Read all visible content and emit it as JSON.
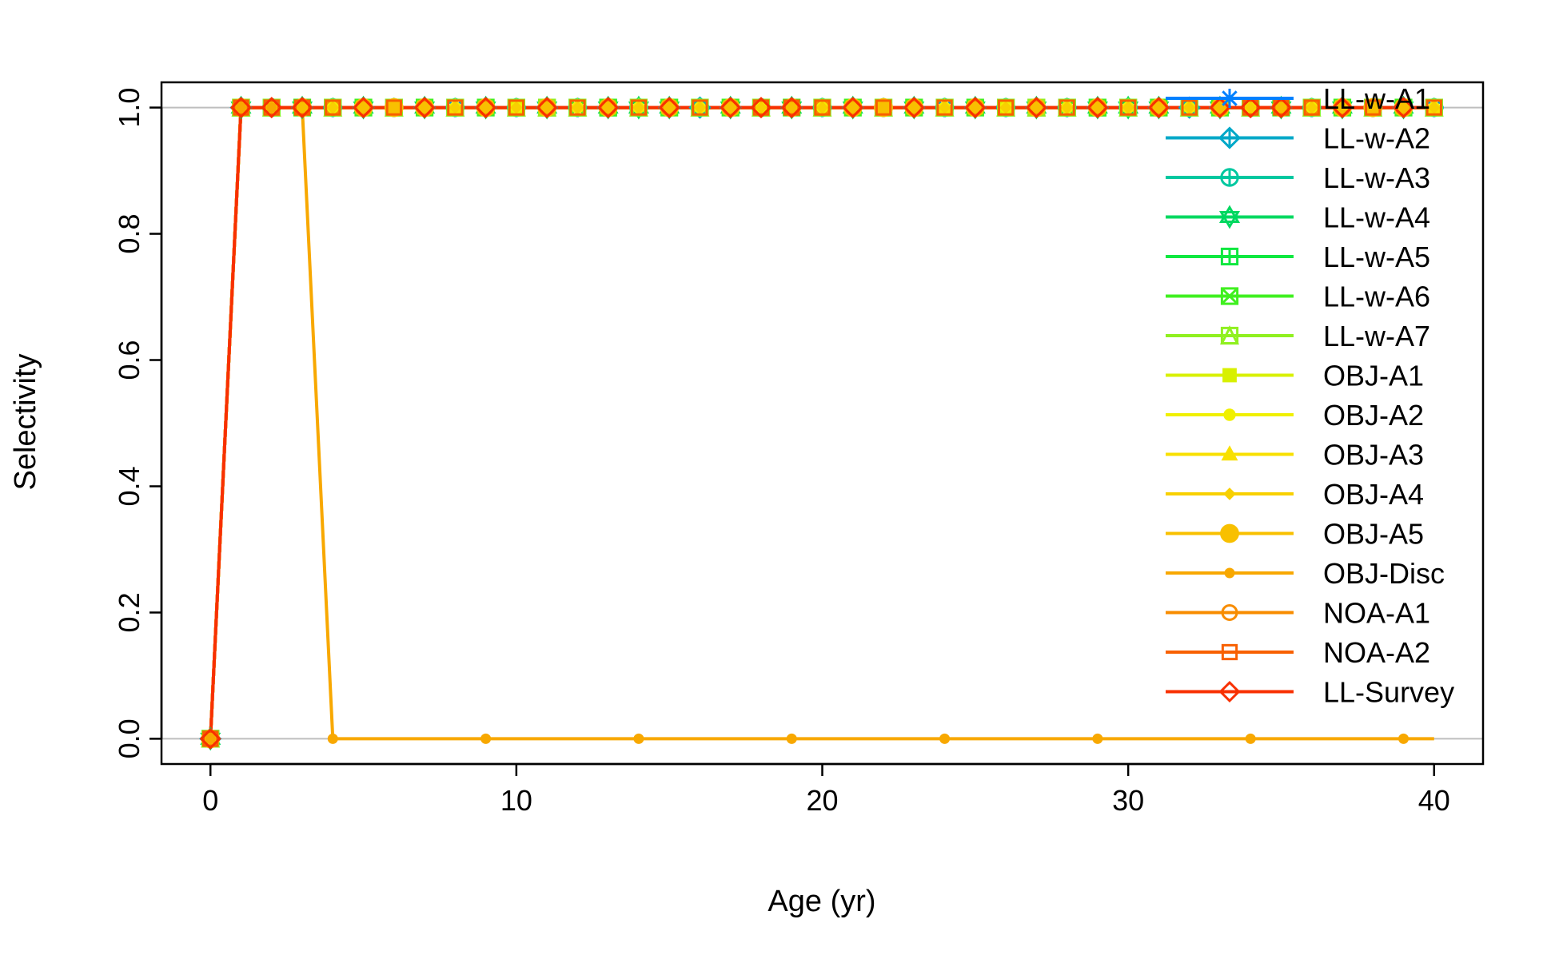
{
  "chart_data": {
    "type": "line",
    "title": "",
    "xlabel": "Age (yr)",
    "ylabel": "Selectivity",
    "xlim": [
      -1.6,
      41.6
    ],
    "ylim": [
      -0.04,
      1.04
    ],
    "x_ticks": [
      "0",
      "10",
      "20",
      "30",
      "40"
    ],
    "x_tick_values": [
      0,
      10,
      20,
      30,
      40
    ],
    "y_ticks": [
      "0.0",
      "0.2",
      "0.4",
      "0.6",
      "0.8",
      "1.0"
    ],
    "y_tick_values": [
      0.0,
      0.2,
      0.4,
      0.6,
      0.8,
      1.0
    ],
    "reference_lines_y": [
      0,
      1
    ],
    "grid": false,
    "legend_position": "top-right",
    "x": [
      0,
      1,
      2,
      3,
      4,
      5,
      6,
      7,
      8,
      9,
      10,
      11,
      12,
      13,
      14,
      15,
      16,
      17,
      18,
      19,
      20,
      21,
      22,
      23,
      24,
      25,
      26,
      27,
      28,
      29,
      30,
      31,
      32,
      33,
      34,
      35,
      36,
      37,
      38,
      39,
      40
    ],
    "series": [
      {
        "name": "LL-w-A1",
        "color": "#0080FF",
        "marker": "asterisk",
        "values": [
          0,
          1,
          1,
          1,
          1,
          1,
          1,
          1,
          1,
          1,
          1,
          1,
          1,
          1,
          1,
          1,
          1,
          1,
          1,
          1,
          1,
          1,
          1,
          1,
          1,
          1,
          1,
          1,
          1,
          1,
          1,
          1,
          1,
          1,
          1,
          1,
          1,
          1,
          1,
          1,
          1
        ]
      },
      {
        "name": "LL-w-A2",
        "color": "#00A8C8",
        "marker": "diamond-plus",
        "values": [
          0,
          1,
          1,
          1,
          1,
          1,
          1,
          1,
          1,
          1,
          1,
          1,
          1,
          1,
          1,
          1,
          1,
          1,
          1,
          1,
          1,
          1,
          1,
          1,
          1,
          1,
          1,
          1,
          1,
          1,
          1,
          1,
          1,
          1,
          1,
          1,
          1,
          1,
          1,
          1,
          1
        ]
      },
      {
        "name": "LL-w-A3",
        "color": "#00C8A0",
        "marker": "circle-plus",
        "values": [
          0,
          1,
          1,
          1,
          1,
          1,
          1,
          1,
          1,
          1,
          1,
          1,
          1,
          1,
          1,
          1,
          1,
          1,
          1,
          1,
          1,
          1,
          1,
          1,
          1,
          1,
          1,
          1,
          1,
          1,
          1,
          1,
          1,
          1,
          1,
          1,
          1,
          1,
          1,
          1,
          1
        ]
      },
      {
        "name": "LL-w-A4",
        "color": "#00D860",
        "marker": "star-of-david",
        "values": [
          0,
          1,
          1,
          1,
          1,
          1,
          1,
          1,
          1,
          1,
          1,
          1,
          1,
          1,
          1,
          1,
          1,
          1,
          1,
          1,
          1,
          1,
          1,
          1,
          1,
          1,
          1,
          1,
          1,
          1,
          1,
          1,
          1,
          1,
          1,
          1,
          1,
          1,
          1,
          1,
          1
        ]
      },
      {
        "name": "LL-w-A5",
        "color": "#10E840",
        "marker": "square-plus",
        "values": [
          0,
          1,
          1,
          1,
          1,
          1,
          1,
          1,
          1,
          1,
          1,
          1,
          1,
          1,
          1,
          1,
          1,
          1,
          1,
          1,
          1,
          1,
          1,
          1,
          1,
          1,
          1,
          1,
          1,
          1,
          1,
          1,
          1,
          1,
          1,
          1,
          1,
          1,
          1,
          1,
          1
        ]
      },
      {
        "name": "LL-w-A6",
        "color": "#40F020",
        "marker": "square-cross",
        "values": [
          0,
          1,
          1,
          1,
          1,
          1,
          1,
          1,
          1,
          1,
          1,
          1,
          1,
          1,
          1,
          1,
          1,
          1,
          1,
          1,
          1,
          1,
          1,
          1,
          1,
          1,
          1,
          1,
          1,
          1,
          1,
          1,
          1,
          1,
          1,
          1,
          1,
          1,
          1,
          1,
          1
        ]
      },
      {
        "name": "LL-w-A7",
        "color": "#90F020",
        "marker": "square-triangle",
        "values": [
          0,
          1,
          1,
          1,
          1,
          1,
          1,
          1,
          1,
          1,
          1,
          1,
          1,
          1,
          1,
          1,
          1,
          1,
          1,
          1,
          1,
          1,
          1,
          1,
          1,
          1,
          1,
          1,
          1,
          1,
          1,
          1,
          1,
          1,
          1,
          1,
          1,
          1,
          1,
          1,
          1
        ]
      },
      {
        "name": "OBJ-A1",
        "color": "#D8F000",
        "marker": "filled-square",
        "values": [
          0,
          1,
          1,
          1,
          1,
          1,
          1,
          1,
          1,
          1,
          1,
          1,
          1,
          1,
          1,
          1,
          1,
          1,
          1,
          1,
          1,
          1,
          1,
          1,
          1,
          1,
          1,
          1,
          1,
          1,
          1,
          1,
          1,
          1,
          1,
          1,
          1,
          1,
          1,
          1,
          1
        ]
      },
      {
        "name": "OBJ-A2",
        "color": "#F0F000",
        "marker": "filled-circle",
        "values": [
          0,
          1,
          1,
          1,
          1,
          1,
          1,
          1,
          1,
          1,
          1,
          1,
          1,
          1,
          1,
          1,
          1,
          1,
          1,
          1,
          1,
          1,
          1,
          1,
          1,
          1,
          1,
          1,
          1,
          1,
          1,
          1,
          1,
          1,
          1,
          1,
          1,
          1,
          1,
          1,
          1
        ]
      },
      {
        "name": "OBJ-A3",
        "color": "#F8E000",
        "marker": "filled-triangle",
        "values": [
          0,
          1,
          1,
          1,
          1,
          1,
          1,
          1,
          1,
          1,
          1,
          1,
          1,
          1,
          1,
          1,
          1,
          1,
          1,
          1,
          1,
          1,
          1,
          1,
          1,
          1,
          1,
          1,
          1,
          1,
          1,
          1,
          1,
          1,
          1,
          1,
          1,
          1,
          1,
          1,
          1
        ]
      },
      {
        "name": "OBJ-A4",
        "color": "#F8D000",
        "marker": "filled-diamond",
        "values": [
          0,
          1,
          1,
          1,
          1,
          1,
          1,
          1,
          1,
          1,
          1,
          1,
          1,
          1,
          1,
          1,
          1,
          1,
          1,
          1,
          1,
          1,
          1,
          1,
          1,
          1,
          1,
          1,
          1,
          1,
          1,
          1,
          1,
          1,
          1,
          1,
          1,
          1,
          1,
          1,
          1
        ]
      },
      {
        "name": "OBJ-A5",
        "color": "#F8C000",
        "marker": "big-circle",
        "values": [
          0,
          1,
          1,
          1,
          1,
          1,
          1,
          1,
          1,
          1,
          1,
          1,
          1,
          1,
          1,
          1,
          1,
          1,
          1,
          1,
          1,
          1,
          1,
          1,
          1,
          1,
          1,
          1,
          1,
          1,
          1,
          1,
          1,
          1,
          1,
          1,
          1,
          1,
          1,
          1,
          1
        ]
      },
      {
        "name": "OBJ-Disc",
        "color": "#F8A800",
        "marker": "small-circle",
        "values": [
          0,
          1,
          1,
          1,
          0,
          0,
          0,
          0,
          0,
          0,
          0,
          0,
          0,
          0,
          0,
          0,
          0,
          0,
          0,
          0,
          0,
          0,
          0,
          0,
          0,
          0,
          0,
          0,
          0,
          0,
          0,
          0,
          0,
          0,
          0,
          0,
          0,
          0,
          0,
          0,
          0
        ]
      },
      {
        "name": "NOA-A1",
        "color": "#F88C00",
        "marker": "open-circle",
        "values": [
          0,
          1,
          1,
          1,
          1,
          1,
          1,
          1,
          1,
          1,
          1,
          1,
          1,
          1,
          1,
          1,
          1,
          1,
          1,
          1,
          1,
          1,
          1,
          1,
          1,
          1,
          1,
          1,
          1,
          1,
          1,
          1,
          1,
          1,
          1,
          1,
          1,
          1,
          1,
          1,
          1
        ]
      },
      {
        "name": "NOA-A2",
        "color": "#F86000",
        "marker": "open-square",
        "values": [
          0,
          1,
          1,
          1,
          1,
          1,
          1,
          1,
          1,
          1,
          1,
          1,
          1,
          1,
          1,
          1,
          1,
          1,
          1,
          1,
          1,
          1,
          1,
          1,
          1,
          1,
          1,
          1,
          1,
          1,
          1,
          1,
          1,
          1,
          1,
          1,
          1,
          1,
          1,
          1,
          1
        ]
      },
      {
        "name": "LL-Survey",
        "color": "#F83000",
        "marker": "open-diamond",
        "values": [
          0,
          1,
          1,
          1,
          1,
          1,
          1,
          1,
          1,
          1,
          1,
          1,
          1,
          1,
          1,
          1,
          1,
          1,
          1,
          1,
          1,
          1,
          1,
          1,
          1,
          1,
          1,
          1,
          1,
          1,
          1,
          1,
          1,
          1,
          1,
          1,
          1,
          1,
          1,
          1,
          1
        ]
      }
    ]
  }
}
